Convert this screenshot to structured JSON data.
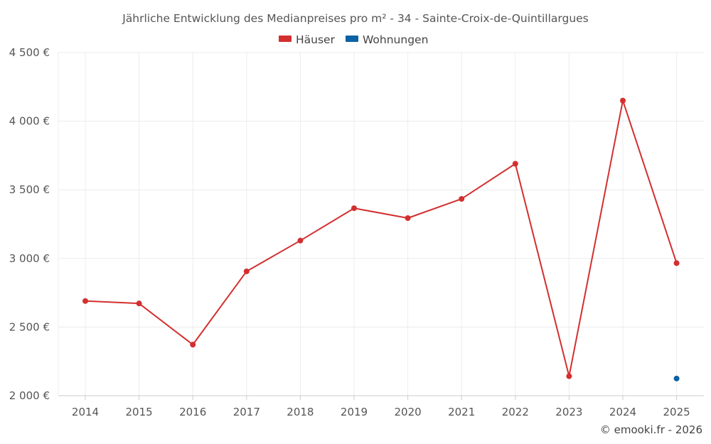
{
  "chart_data": {
    "type": "line",
    "title": "Jährliche Entwicklung des Medianpreises pro m² - 34 - Sainte-Croix-de-Quintillargues",
    "categories": [
      "2014",
      "2015",
      "2016",
      "2017",
      "2018",
      "2019",
      "2020",
      "2021",
      "2022",
      "2023",
      "2024",
      "2025"
    ],
    "series": [
      {
        "name": "Häuser",
        "color": "#d32f2f",
        "values": [
          2690,
          2672,
          2372,
          2906,
          3130,
          3366,
          3294,
          3434,
          3690,
          2142,
          4150,
          2966
        ]
      },
      {
        "name": "Wohnungen",
        "color": "#0b62a4",
        "values": [
          null,
          null,
          null,
          null,
          null,
          null,
          null,
          null,
          null,
          null,
          null,
          2125
        ]
      }
    ],
    "ylim": [
      2000,
      4500
    ],
    "yticks": [
      2000,
      2500,
      3000,
      3500,
      4000,
      4500
    ],
    "ytick_labels": [
      "2 000 €",
      "2 500 €",
      "3 000 €",
      "3 500 €",
      "4 000 €",
      "4 500 €"
    ],
    "xlabel": "",
    "ylabel": "",
    "grid": true,
    "legend": "top-center"
  },
  "copyright": "© emooki.fr - 2026"
}
